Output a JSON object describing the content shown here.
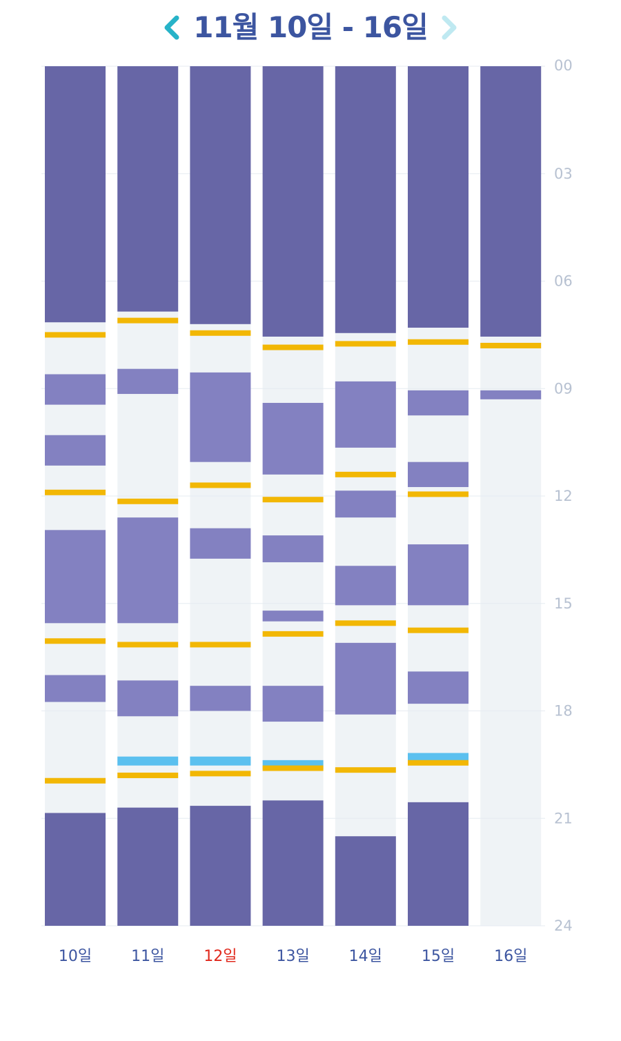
{
  "header": {
    "title": "11월 10일 - 16일",
    "prev_icon": "chevron-left-icon",
    "next_icon": "chevron-right-icon",
    "prev_color": "#27b3c8",
    "next_color": "#bfe9f1",
    "title_color": "#3c55a0"
  },
  "colors": {
    "night_sleep": "#6766a6",
    "nap": "#8381c1",
    "awake": "#eff3f6",
    "feeding": "#f2b705",
    "bath": "#5bc0ef",
    "day_label": "#3c55a0",
    "day_label_today": "#e0281c",
    "hour_label": "#b7c1d1"
  },
  "chart_data": {
    "type": "timeline",
    "y_axis_unit": "hour",
    "ylim": [
      0,
      24
    ],
    "hour_ticks": [
      "00",
      "03",
      "06",
      "09",
      "12",
      "15",
      "18",
      "21",
      "24"
    ],
    "legend": "none",
    "days": [
      {
        "label": "10일",
        "is_today": false,
        "segments": [
          {
            "type": "night_sleep",
            "start": 0,
            "end": 7.15
          },
          {
            "type": "nap",
            "start": 8.6,
            "end": 9.45
          },
          {
            "type": "nap",
            "start": 10.3,
            "end": 11.15
          },
          {
            "type": "nap",
            "start": 12.95,
            "end": 15.55
          },
          {
            "type": "nap",
            "start": 17.0,
            "end": 17.75
          },
          {
            "type": "night_sleep",
            "start": 20.85,
            "end": 24
          }
        ],
        "marks": [
          {
            "type": "feeding",
            "at": 7.5
          },
          {
            "type": "feeding",
            "at": 11.9
          },
          {
            "type": "feeding",
            "at": 16.05
          },
          {
            "type": "feeding",
            "at": 19.95
          }
        ]
      },
      {
        "label": "11일",
        "is_today": false,
        "segments": [
          {
            "type": "night_sleep",
            "start": 0,
            "end": 6.85
          },
          {
            "type": "nap",
            "start": 8.45,
            "end": 9.15
          },
          {
            "type": "nap",
            "start": 12.6,
            "end": 15.55
          },
          {
            "type": "nap",
            "start": 17.15,
            "end": 18.15
          },
          {
            "type": "night_sleep",
            "start": 20.7,
            "end": 24
          }
        ],
        "marks": [
          {
            "type": "feeding",
            "at": 7.1
          },
          {
            "type": "feeding",
            "at": 12.15
          },
          {
            "type": "feeding",
            "at": 16.15
          },
          {
            "type": "bath",
            "at": 19.4
          },
          {
            "type": "feeding",
            "at": 19.8
          }
        ]
      },
      {
        "label": "12일",
        "is_today": true,
        "segments": [
          {
            "type": "night_sleep",
            "start": 0,
            "end": 7.2
          },
          {
            "type": "nap",
            "start": 8.55,
            "end": 11.05
          },
          {
            "type": "nap",
            "start": 12.9,
            "end": 13.75
          },
          {
            "type": "nap",
            "start": 17.3,
            "end": 18.0
          },
          {
            "type": "night_sleep",
            "start": 20.65,
            "end": 24
          }
        ],
        "marks": [
          {
            "type": "feeding",
            "at": 7.45
          },
          {
            "type": "feeding",
            "at": 11.7
          },
          {
            "type": "feeding",
            "at": 16.15
          },
          {
            "type": "bath",
            "at": 19.4
          },
          {
            "type": "feeding",
            "at": 19.75
          }
        ]
      },
      {
        "label": "13일",
        "is_today": false,
        "segments": [
          {
            "type": "night_sleep",
            "start": 0,
            "end": 7.55
          },
          {
            "type": "nap",
            "start": 9.4,
            "end": 11.4
          },
          {
            "type": "nap",
            "start": 13.1,
            "end": 13.85
          },
          {
            "type": "nap",
            "start": 15.2,
            "end": 15.5
          },
          {
            "type": "nap",
            "start": 17.3,
            "end": 18.3
          },
          {
            "type": "night_sleep",
            "start": 20.5,
            "end": 24
          }
        ],
        "marks": [
          {
            "type": "feeding",
            "at": 7.85
          },
          {
            "type": "feeding",
            "at": 12.1
          },
          {
            "type": "feeding",
            "at": 15.85
          },
          {
            "type": "bath",
            "at": 19.5
          },
          {
            "type": "feeding",
            "at": 19.6
          }
        ]
      },
      {
        "label": "14일",
        "is_today": false,
        "segments": [
          {
            "type": "night_sleep",
            "start": 0,
            "end": 7.45
          },
          {
            "type": "nap",
            "start": 8.8,
            "end": 10.65
          },
          {
            "type": "nap",
            "start": 11.85,
            "end": 12.6
          },
          {
            "type": "nap",
            "start": 13.95,
            "end": 15.05
          },
          {
            "type": "nap",
            "start": 16.1,
            "end": 18.1
          },
          {
            "type": "night_sleep",
            "start": 21.5,
            "end": 24
          }
        ],
        "marks": [
          {
            "type": "feeding",
            "at": 7.75
          },
          {
            "type": "feeding",
            "at": 11.4
          },
          {
            "type": "feeding",
            "at": 15.55
          },
          {
            "type": "feeding",
            "at": 19.65
          }
        ]
      },
      {
        "label": "15일",
        "is_today": false,
        "segments": [
          {
            "type": "night_sleep",
            "start": 0,
            "end": 7.3
          },
          {
            "type": "nap",
            "start": 9.05,
            "end": 9.75
          },
          {
            "type": "nap",
            "start": 11.05,
            "end": 11.75
          },
          {
            "type": "nap",
            "start": 13.35,
            "end": 15.05
          },
          {
            "type": "nap",
            "start": 16.9,
            "end": 17.8
          },
          {
            "type": "night_sleep",
            "start": 20.55,
            "end": 24
          }
        ],
        "marks": [
          {
            "type": "feeding",
            "at": 7.7
          },
          {
            "type": "feeding",
            "at": 11.95
          },
          {
            "type": "feeding",
            "at": 15.75
          },
          {
            "type": "bath",
            "at": 19.3
          },
          {
            "type": "feeding",
            "at": 19.45
          }
        ]
      },
      {
        "label": "16일",
        "is_today": false,
        "segments": [
          {
            "type": "night_sleep",
            "start": 0,
            "end": 7.55
          },
          {
            "type": "nap",
            "start": 9.05,
            "end": 9.3
          }
        ],
        "marks": [
          {
            "type": "feeding",
            "at": 7.8
          }
        ]
      }
    ]
  }
}
